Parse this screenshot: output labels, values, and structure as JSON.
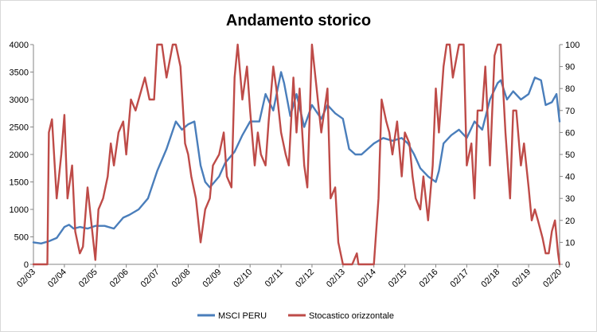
{
  "chart_data": {
    "type": "line",
    "title": "Andamento storico",
    "xlabel": "",
    "ylabel_left": "",
    "ylabel_right": "",
    "x_tick_labels": [
      "02/03",
      "02/04",
      "02/05",
      "02/06",
      "02/07",
      "02/08",
      "02/09",
      "02/10",
      "02/11",
      "02/12",
      "02/13",
      "02/14",
      "02/15",
      "02/16",
      "02/17",
      "02/18",
      "02/19",
      "02/20"
    ],
    "y_left": {
      "min": 0,
      "max": 4000,
      "step": 500
    },
    "y_right": {
      "min": 0,
      "max": 100,
      "step": 10
    },
    "grid": false,
    "legend_position": "bottom",
    "series": [
      {
        "name": "MSCI PERU",
        "axis": "left",
        "color": "#4a7ebb",
        "x": [
          2003.0,
          2003.25,
          2003.5,
          2003.75,
          2004.0,
          2004.15,
          2004.3,
          2004.5,
          2004.75,
          2005.0,
          2005.3,
          2005.6,
          2005.9,
          2006.1,
          2006.4,
          2006.7,
          2007.0,
          2007.3,
          2007.6,
          2007.8,
          2008.0,
          2008.2,
          2008.4,
          2008.55,
          2008.7,
          2008.85,
          2009.0,
          2009.2,
          2009.5,
          2009.75,
          2010.0,
          2010.3,
          2010.5,
          2010.75,
          2011.0,
          2011.1,
          2011.3,
          2011.5,
          2011.75,
          2012.0,
          2012.3,
          2012.5,
          2012.75,
          2013.0,
          2013.2,
          2013.4,
          2013.6,
          2013.8,
          2014.0,
          2014.3,
          2014.6,
          2014.9,
          2015.1,
          2015.3,
          2015.5,
          2015.75,
          2016.0,
          2016.1,
          2016.25,
          2016.5,
          2016.75,
          2017.0,
          2017.25,
          2017.5,
          2017.75,
          2018.0,
          2018.1,
          2018.3,
          2018.5,
          2018.75,
          2019.0,
          2019.2,
          2019.4,
          2019.55,
          2019.75,
          2019.9,
          2020.0
        ],
        "values": [
          400,
          380,
          420,
          480,
          680,
          720,
          650,
          680,
          650,
          700,
          700,
          650,
          850,
          900,
          1000,
          1200,
          1700,
          2100,
          2600,
          2450,
          2550,
          2600,
          1800,
          1500,
          1400,
          1500,
          1600,
          1850,
          2050,
          2350,
          2600,
          2600,
          3100,
          2800,
          3500,
          3300,
          2700,
          3100,
          2500,
          2900,
          2650,
          2900,
          2750,
          2650,
          2100,
          2000,
          2000,
          2100,
          2200,
          2300,
          2250,
          2300,
          2200,
          2000,
          1750,
          1600,
          1500,
          1700,
          2200,
          2350,
          2450,
          2300,
          2600,
          2450,
          3000,
          3300,
          3350,
          3000,
          3150,
          3000,
          3100,
          3400,
          3350,
          2900,
          2950,
          3100,
          2600
        ]
      },
      {
        "name": "Stocastico orizzontale",
        "axis": "right",
        "color": "#be4b48",
        "x": [
          2003.0,
          2003.45,
          2003.5,
          2003.6,
          2003.75,
          2003.9,
          2004.0,
          2004.1,
          2004.25,
          2004.35,
          2004.5,
          2004.6,
          2004.75,
          2004.9,
          2005.0,
          2005.1,
          2005.25,
          2005.4,
          2005.5,
          2005.6,
          2005.75,
          2005.9,
          2006.0,
          2006.15,
          2006.3,
          2006.5,
          2006.6,
          2006.75,
          2006.9,
          2007.0,
          2007.15,
          2007.3,
          2007.5,
          2007.6,
          2007.75,
          2007.9,
          2008.0,
          2008.1,
          2008.25,
          2008.4,
          2008.55,
          2008.7,
          2008.8,
          2009.0,
          2009.15,
          2009.25,
          2009.4,
          2009.5,
          2009.6,
          2009.75,
          2009.9,
          2010.0,
          2010.15,
          2010.25,
          2010.35,
          2010.5,
          2010.6,
          2010.75,
          2010.85,
          2011.0,
          2011.15,
          2011.25,
          2011.4,
          2011.5,
          2011.6,
          2011.75,
          2011.85,
          2012.0,
          2012.15,
          2012.3,
          2012.5,
          2012.6,
          2012.75,
          2012.85,
          2013.0,
          2013.15,
          2013.3,
          2013.45,
          2013.5,
          2013.6,
          2013.75,
          2013.9,
          2014.0,
          2014.15,
          2014.25,
          2014.4,
          2014.5,
          2014.6,
          2014.75,
          2014.9,
          2015.0,
          2015.15,
          2015.25,
          2015.35,
          2015.5,
          2015.6,
          2015.75,
          2015.9,
          2016.0,
          2016.1,
          2016.25,
          2016.35,
          2016.45,
          2016.55,
          2016.75,
          2016.9,
          2017.0,
          2017.15,
          2017.25,
          2017.35,
          2017.5,
          2017.6,
          2017.75,
          2017.9,
          2018.0,
          2018.1,
          2018.25,
          2018.4,
          2018.5,
          2018.6,
          2018.75,
          2018.85,
          2019.0,
          2019.1,
          2019.2,
          2019.3,
          2019.45,
          2019.55,
          2019.65,
          2019.75,
          2019.85,
          2019.95,
          2020.0
        ],
        "values": [
          0,
          0,
          60,
          66,
          30,
          50,
          68,
          30,
          45,
          15,
          5,
          8,
          35,
          15,
          2,
          25,
          30,
          40,
          55,
          45,
          60,
          65,
          50,
          75,
          70,
          80,
          85,
          75,
          75,
          100,
          100,
          85,
          100,
          100,
          90,
          55,
          50,
          40,
          30,
          10,
          25,
          30,
          45,
          50,
          60,
          40,
          35,
          85,
          100,
          75,
          90,
          70,
          45,
          60,
          50,
          45,
          65,
          90,
          80,
          60,
          50,
          45,
          85,
          60,
          80,
          45,
          35,
          100,
          80,
          60,
          80,
          30,
          35,
          10,
          0,
          0,
          0,
          5,
          0,
          0,
          0,
          0,
          0,
          30,
          75,
          65,
          60,
          50,
          65,
          40,
          60,
          55,
          40,
          30,
          25,
          40,
          20,
          45,
          80,
          60,
          90,
          100,
          100,
          85,
          100,
          100,
          45,
          55,
          30,
          70,
          70,
          90,
          45,
          95,
          100,
          100,
          60,
          30,
          70,
          70,
          45,
          55,
          35,
          20,
          25,
          20,
          12,
          5,
          5,
          15,
          20,
          5,
          0
        ]
      }
    ]
  }
}
